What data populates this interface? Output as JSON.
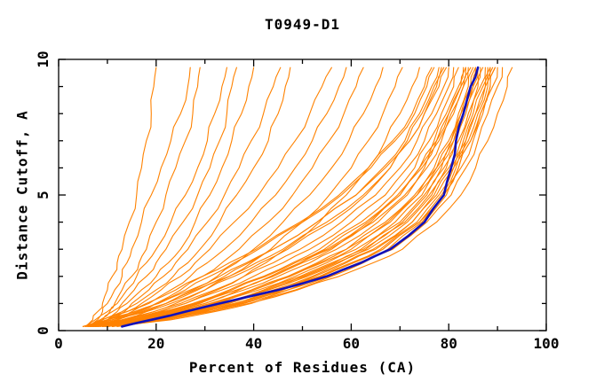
{
  "chart_data": {
    "type": "line",
    "title": "T0949-D1",
    "xlabel": "Percent of Residues (CA)",
    "ylabel": "Distance Cutoff, A",
    "xlim": [
      0,
      100
    ],
    "ylim": [
      0,
      10
    ],
    "x_major_ticks": [
      0,
      20,
      40,
      60,
      80,
      100
    ],
    "x_minor_ticks": [
      10,
      30,
      50,
      70,
      90
    ],
    "y_major_ticks": [
      0,
      5,
      10
    ],
    "y_minor_ticks": [
      1,
      2,
      3,
      4,
      6,
      7,
      8,
      9
    ],
    "grid": false,
    "legend": "none",
    "frame_color": "#000000",
    "series_color": "#ff8200",
    "highlight_color": "#1111bb",
    "y_levels": [
      0.15,
      0.4,
      0.7,
      1.0,
      1.5,
      2.0,
      2.5,
      3.0,
      4.0,
      5.0,
      6.0,
      7.0,
      8.0,
      9.0,
      9.7
    ],
    "series_x": [
      [
        5.5,
        7,
        8,
        9,
        10,
        11,
        12,
        13,
        14.5,
        16,
        17,
        18,
        19,
        19.5,
        20
      ],
      [
        5.5,
        7.5,
        9,
        10,
        11.5,
        13,
        14,
        15,
        17,
        19,
        21,
        23,
        25,
        26.5,
        27
      ],
      [
        6,
        8,
        10,
        11.5,
        13,
        15,
        16.5,
        18,
        20,
        22,
        24,
        26,
        27.5,
        28.5,
        29
      ],
      [
        6,
        8.5,
        10.5,
        12,
        14,
        16,
        18,
        20,
        23,
        26,
        28.5,
        30.5,
        32,
        33.5,
        34.5
      ],
      [
        6,
        9,
        11,
        13,
        15.5,
        18,
        20,
        22,
        25.5,
        28.5,
        31,
        33,
        34.5,
        35.5,
        36.5
      ],
      [
        6.5,
        9,
        12,
        14,
        17,
        20,
        22.5,
        25,
        28,
        31,
        33.5,
        35.5,
        37.5,
        39,
        40
      ],
      [
        6.5,
        10,
        13,
        15,
        18.5,
        21.5,
        24,
        26.5,
        30.5,
        34,
        37,
        39.5,
        42,
        44,
        45.5
      ],
      [
        7,
        10,
        13.5,
        16,
        20,
        23.5,
        26.5,
        29,
        33,
        36.5,
        40,
        43,
        45,
        46.5,
        47.5
      ],
      [
        6,
        10,
        14,
        17,
        21,
        25,
        28,
        31,
        36,
        41,
        45,
        48.5,
        51.5,
        54,
        56
      ],
      [
        6.5,
        11,
        15,
        18.5,
        23,
        27,
        30.5,
        34,
        39.5,
        44.5,
        48.5,
        52,
        55,
        57.5,
        59
      ],
      [
        7,
        12,
        16.5,
        20,
        25,
        29.5,
        33.5,
        37,
        43,
        48,
        52,
        55.5,
        58.5,
        61,
        62.5
      ],
      [
        7,
        13,
        18,
        22,
        27.5,
        32.5,
        36.5,
        40,
        46,
        51.5,
        56,
        59.5,
        62.5,
        65,
        66.5
      ],
      [
        7.5,
        14,
        19.5,
        24,
        30,
        35,
        39.5,
        43.5,
        50,
        55.5,
        60,
        63.5,
        66.5,
        69,
        70.5
      ],
      [
        8,
        15,
        21,
        26,
        32.5,
        38,
        42.5,
        46.5,
        53.5,
        59,
        63.5,
        67,
        70,
        72.5,
        74
      ],
      [
        5,
        9,
        14,
        18,
        24,
        29.5,
        35,
        40.5,
        49.5,
        57.5,
        63.5,
        68.5,
        72.5,
        75,
        76.5
      ],
      [
        5,
        10,
        15.5,
        20.5,
        27,
        33,
        38.5,
        44,
        53,
        61,
        67,
        71.5,
        74.5,
        77,
        78.5
      ],
      [
        5,
        10,
        16,
        20,
        26,
        31,
        36,
        41,
        50,
        58,
        64,
        69,
        73,
        75.5,
        77
      ],
      [
        5,
        11,
        17,
        22,
        28,
        34,
        39,
        44,
        53,
        61,
        66.5,
        71,
        74,
        76.5,
        78
      ],
      [
        5.5,
        12,
        18,
        23,
        30,
        36,
        41.5,
        47,
        56,
        63,
        68,
        72,
        75,
        77.5,
        79
      ],
      [
        5.5,
        13,
        19.5,
        25,
        32,
        38,
        44,
        49.5,
        58,
        65,
        70,
        73.5,
        76.5,
        79,
        80
      ],
      [
        6,
        12,
        17.5,
        22,
        28.5,
        35,
        40.5,
        46,
        55,
        62.5,
        68,
        72,
        75,
        78,
        79.5
      ],
      [
        6,
        13.5,
        20.5,
        26,
        33.5,
        40,
        46,
        51.5,
        60,
        67,
        71.5,
        75,
        77.5,
        80,
        81
      ],
      [
        6,
        14,
        21.5,
        27.5,
        35,
        42,
        48,
        53.5,
        62,
        68.5,
        73,
        76,
        78.5,
        81,
        82
      ],
      [
        6,
        14.5,
        22.5,
        28.5,
        36.5,
        43.5,
        49.5,
        55.5,
        64,
        70,
        74,
        77,
        79.5,
        82,
        83
      ],
      [
        6.5,
        15,
        22,
        28,
        35.5,
        42.5,
        48.5,
        54.5,
        63,
        69.5,
        74,
        77.5,
        80,
        82.5,
        83.5
      ],
      [
        6,
        15,
        23.5,
        30,
        38,
        45,
        51.5,
        57,
        65.5,
        71.5,
        75.5,
        78.5,
        81,
        83,
        84
      ],
      [
        6.5,
        16,
        24.5,
        31,
        39.5,
        47,
        53.5,
        59,
        67,
        73,
        77,
        80,
        82,
        84,
        85
      ],
      [
        6.5,
        16.5,
        25.5,
        32.5,
        41,
        48.5,
        55,
        61,
        69,
        74.5,
        78,
        81,
        83,
        85,
        86
      ],
      [
        6.5,
        17,
        26.5,
        33.5,
        42.5,
        50.5,
        57,
        63,
        71,
        76,
        79.5,
        82,
        84,
        86,
        87
      ],
      [
        7,
        18,
        27.5,
        35,
        44,
        52,
        58.5,
        64.5,
        72.5,
        77.5,
        81,
        83.5,
        85.5,
        87.5,
        88.5
      ],
      [
        7,
        18.5,
        28.5,
        36,
        45.5,
        53.5,
        60.5,
        66.5,
        74,
        79,
        82,
        84.5,
        86.5,
        88.5,
        89.5
      ],
      [
        7,
        19,
        29.5,
        37.5,
        47,
        55.5,
        62,
        68,
        75.5,
        80.5,
        83.5,
        86,
        88,
        90,
        91
      ],
      [
        7.5,
        20,
        31,
        39,
        49,
        57.5,
        64.5,
        70.5,
        77.5,
        82.5,
        85.5,
        88,
        90,
        92,
        93
      ],
      [
        8,
        16,
        23,
        29,
        36.5,
        43.5,
        49.5,
        55,
        63.5,
        70,
        74.5,
        77.5,
        80,
        82.5,
        83.5
      ],
      [
        8,
        17,
        24,
        30,
        37,
        44,
        50,
        56,
        64.5,
        71,
        75,
        78,
        80.5,
        83,
        84.5
      ],
      [
        9,
        18,
        26,
        32,
        40,
        47,
        53,
        59,
        67.5,
        73.5,
        77.5,
        80.5,
        82.5,
        84.5,
        85.5
      ],
      [
        9,
        19,
        27,
        33.5,
        42,
        49.5,
        56,
        62,
        70,
        75,
        78.5,
        81,
        83,
        85,
        86
      ],
      [
        10,
        20,
        28,
        34.5,
        43,
        50,
        56.5,
        62.5,
        70.5,
        75.5,
        79,
        81.5,
        83.5,
        85.5,
        86.5
      ],
      [
        10,
        21,
        30,
        37,
        46,
        54,
        60.5,
        66.5,
        74,
        78.5,
        81.5,
        84,
        86,
        88,
        89
      ],
      [
        11,
        21,
        29.5,
        36.5,
        45,
        52.5,
        59,
        65,
        72.5,
        77,
        80.5,
        83,
        85,
        87,
        88
      ],
      [
        11,
        22,
        31,
        38,
        47,
        55,
        61.5,
        67.5,
        74.5,
        79,
        82,
        84.5,
        86.5,
        88.5,
        89.5
      ],
      [
        12,
        23,
        32,
        39.5,
        48.5,
        56,
        62.5,
        68.5,
        75,
        79.5,
        82.5,
        85,
        87,
        89,
        90
      ],
      [
        7.5,
        17,
        25,
        31.5,
        40,
        47.5,
        54,
        60,
        68,
        73.5,
        77.5,
        80.5,
        82.5,
        84.5,
        85.5
      ],
      [
        8.5,
        18.5,
        27,
        34,
        43,
        51,
        57.5,
        63.5,
        71.5,
        76.5,
        80,
        82.5,
        84.5,
        86.5,
        87.5
      ],
      [
        9.5,
        20,
        29,
        36,
        45.5,
        53.5,
        60,
        66,
        73.5,
        78,
        81,
        83.5,
        85.5,
        87.5,
        88.5
      ]
    ],
    "highlight_x": [
      13,
      19,
      26,
      33,
      45,
      55,
      62,
      68,
      75,
      79,
      80.5,
      81.5,
      83,
      84.5,
      86
    ]
  }
}
